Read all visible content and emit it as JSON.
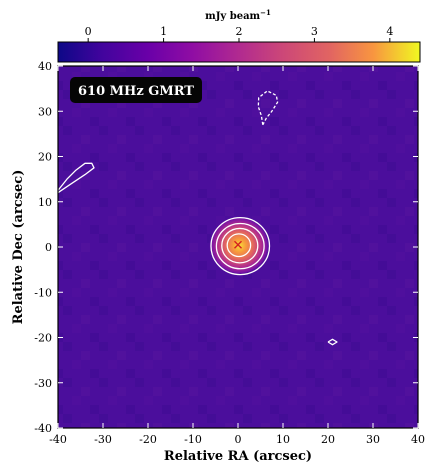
{
  "chart_data": {
    "type": "heatmap",
    "title": "",
    "annotation": "610 MHz GMRT",
    "xlabel": "Relative RA (arcsec)",
    "ylabel": "Relative Dec (arcsec)",
    "xlim": [
      -40,
      40
    ],
    "ylim": [
      -40,
      40
    ],
    "xticks": [
      -40,
      -30,
      -20,
      -10,
      0,
      10,
      20,
      30,
      40
    ],
    "yticks": [
      -40,
      -30,
      -20,
      -10,
      0,
      10,
      20,
      30,
      40
    ],
    "colorbar": {
      "label": "mJy beam",
      "label_superscript": "−1",
      "range": [
        -0.4,
        4.4
      ],
      "ticks": [
        0,
        1,
        2,
        3,
        4
      ],
      "colormap": "plasma",
      "position": "top"
    },
    "background_color": "#4b0e9c",
    "source": {
      "x": 0,
      "y": 0.5,
      "peak_mJy": 4.4,
      "marker": "x",
      "marker_color": "#d62020"
    },
    "contours": [
      {
        "type": "ellipse",
        "cx": 0.5,
        "cy": 0.2,
        "rx": 6.5,
        "ry": 6.3,
        "style": "solid",
        "color": "#ffffff"
      },
      {
        "type": "ellipse",
        "cx": 0.5,
        "cy": 0.2,
        "rx": 5.3,
        "ry": 5.0,
        "style": "solid",
        "color": "#ffffff"
      },
      {
        "type": "ellipse",
        "cx": 0.4,
        "cy": 0.3,
        "rx": 4.0,
        "ry": 3.8,
        "style": "solid",
        "color": "#ffffff"
      },
      {
        "type": "ellipse",
        "cx": 0.2,
        "cy": 0.4,
        "rx": 2.6,
        "ry": 2.5,
        "style": "solid",
        "color": "#ffffff"
      },
      {
        "type": "path",
        "style": "dashed",
        "color": "#ffffff",
        "points": [
          [
            5.5,
            27
          ],
          [
            5.2,
            29
          ],
          [
            4.5,
            31
          ],
          [
            4.6,
            33
          ],
          [
            6.5,
            34.5
          ],
          [
            8.5,
            33.5
          ],
          [
            8.8,
            32
          ],
          [
            7.5,
            30
          ],
          [
            6.3,
            28.5
          ],
          [
            5.5,
            27
          ]
        ]
      },
      {
        "type": "path",
        "style": "solid",
        "color": "#ffffff",
        "points": [
          [
            -40,
            12.5
          ],
          [
            -38,
            15
          ],
          [
            -36,
            17
          ],
          [
            -34,
            18.5
          ],
          [
            -32.5,
            18.5
          ],
          [
            -32,
            17.5
          ],
          [
            -34,
            16
          ],
          [
            -37,
            14
          ],
          [
            -40,
            12
          ]
        ]
      },
      {
        "type": "path",
        "style": "solid",
        "color": "#ffffff",
        "points": [
          [
            20,
            -21
          ],
          [
            21,
            -20.4
          ],
          [
            22,
            -21
          ],
          [
            21,
            -21.6
          ],
          [
            20,
            -21
          ]
        ]
      }
    ]
  }
}
